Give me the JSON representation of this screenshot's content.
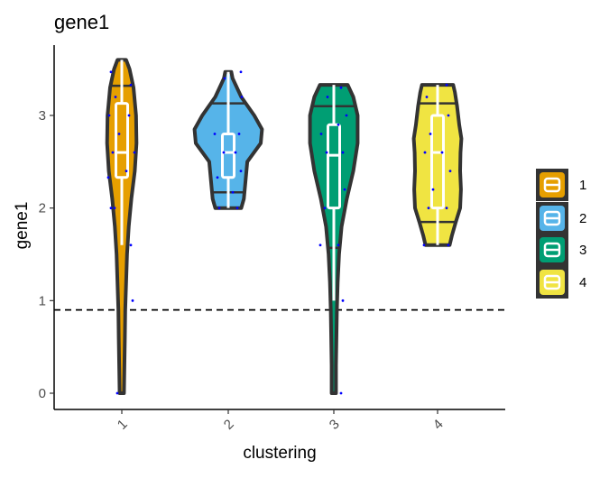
{
  "chart_data": {
    "type": "violin",
    "title": "gene1",
    "xlabel": "clustering",
    "ylabel": "gene1",
    "categories": [
      "1",
      "2",
      "3",
      "4"
    ],
    "ylim": [
      -0.18,
      3.77
    ],
    "yticks": [
      0,
      1,
      2,
      3
    ],
    "ytick_labels": [
      "0",
      "1",
      "2",
      "3"
    ],
    "reference_line": {
      "y": 0.9,
      "style": "dashed",
      "color": "#000000"
    },
    "legend": {
      "placement": "right",
      "items": [
        "1",
        "2",
        "3",
        "4"
      ]
    },
    "colors": [
      "#E69F00",
      "#56B4E9",
      "#009E73",
      "#F0E442"
    ],
    "point_color": "#0000FF",
    "groups": [
      {
        "name": "1",
        "violin": [
          [
            0,
            0.05
          ],
          [
            0.3,
            0.06
          ],
          [
            0.6,
            0.07
          ],
          [
            0.9,
            0.08
          ],
          [
            1.2,
            0.1
          ],
          [
            1.5,
            0.12
          ],
          [
            1.8,
            0.16
          ],
          [
            2.1,
            0.22
          ],
          [
            2.4,
            0.3
          ],
          [
            2.7,
            0.34
          ],
          [
            3.0,
            0.33
          ],
          [
            3.3,
            0.27
          ],
          [
            3.5,
            0.18
          ],
          [
            3.6,
            0.1
          ]
        ],
        "quantile_lines": [
          3.32
        ],
        "box": {
          "lower_whisker": 1.6,
          "q1": 2.33,
          "median": 2.6,
          "q3": 3.13,
          "upper_whisker": 3.6
        },
        "points": [
          [
            -0.05,
            0.0
          ],
          [
            0.12,
            1.0
          ],
          [
            -0.12,
            2.0
          ],
          [
            -0.08,
            2.0
          ],
          [
            0.1,
            1.6
          ],
          [
            -0.15,
            2.33
          ],
          [
            0.05,
            2.4
          ],
          [
            -0.1,
            2.6
          ],
          [
            0.14,
            2.6
          ],
          [
            -0.03,
            2.8
          ],
          [
            0.08,
            3.0
          ],
          [
            -0.14,
            3.0
          ],
          [
            -0.07,
            3.2
          ],
          [
            0.1,
            3.33
          ],
          [
            -0.12,
            3.47
          ]
        ]
      },
      {
        "name": "2",
        "violin": [
          [
            2.0,
            0.3
          ],
          [
            2.1,
            0.36
          ],
          [
            2.3,
            0.4
          ],
          [
            2.5,
            0.44
          ],
          [
            2.7,
            0.75
          ],
          [
            2.85,
            0.78
          ],
          [
            3.0,
            0.6
          ],
          [
            3.2,
            0.3
          ],
          [
            3.4,
            0.1
          ],
          [
            3.47,
            0.07
          ]
        ],
        "quantile_lines": [
          2.17,
          3.13
        ],
        "box": {
          "lower_whisker": 2.0,
          "q1": 2.33,
          "median": 2.6,
          "q3": 2.8,
          "upper_whisker": 3.47
        },
        "points": [
          [
            -0.1,
            2.0
          ],
          [
            0.1,
            2.0
          ],
          [
            0.05,
            2.17
          ],
          [
            -0.12,
            2.33
          ],
          [
            0.14,
            2.4
          ],
          [
            -0.05,
            2.6
          ],
          [
            0.08,
            2.6
          ],
          [
            -0.15,
            2.8
          ],
          [
            0.12,
            2.8
          ],
          [
            0.15,
            3.2
          ],
          [
            -0.04,
            3.4
          ],
          [
            0.14,
            3.47
          ]
        ]
      },
      {
        "name": "3",
        "violin": [
          [
            0,
            0.05
          ],
          [
            0.3,
            0.05
          ],
          [
            0.6,
            0.06
          ],
          [
            0.9,
            0.07
          ],
          [
            1.2,
            0.09
          ],
          [
            1.5,
            0.12
          ],
          [
            1.8,
            0.18
          ],
          [
            2.1,
            0.3
          ],
          [
            2.4,
            0.45
          ],
          [
            2.7,
            0.55
          ],
          [
            3.0,
            0.55
          ],
          [
            3.2,
            0.45
          ],
          [
            3.33,
            0.32
          ]
        ],
        "quantile_lines": [
          1.57,
          3.1
        ],
        "box": {
          "lower_whisker": 1.0,
          "q1": 2.0,
          "median": 2.57,
          "q3": 2.9,
          "upper_whisker": 3.33
        },
        "points": [
          [
            0.08,
            0.0
          ],
          [
            0.1,
            1.0
          ],
          [
            -0.15,
            1.6
          ],
          [
            0.05,
            1.6
          ],
          [
            -0.1,
            2.0
          ],
          [
            0.12,
            2.2
          ],
          [
            -0.08,
            2.6
          ],
          [
            0.1,
            2.6
          ],
          [
            -0.14,
            2.8
          ],
          [
            0.05,
            2.9
          ],
          [
            0.14,
            3.0
          ],
          [
            -0.07,
            3.2
          ],
          [
            0.08,
            3.3
          ]
        ]
      },
      {
        "name": "4",
        "violin": [
          [
            1.6,
            0.28
          ],
          [
            1.7,
            0.33
          ],
          [
            1.85,
            0.42
          ],
          [
            2.0,
            0.52
          ],
          [
            2.2,
            0.54
          ],
          [
            2.4,
            0.52
          ],
          [
            2.6,
            0.53
          ],
          [
            2.75,
            0.55
          ],
          [
            2.9,
            0.5
          ],
          [
            3.1,
            0.45
          ],
          [
            3.25,
            0.4
          ],
          [
            3.33,
            0.36
          ]
        ],
        "quantile_lines": [
          1.85,
          3.13
        ],
        "box": {
          "lower_whisker": 1.6,
          "q1": 2.0,
          "median": 2.6,
          "q3": 3.0,
          "upper_whisker": 3.33
        },
        "points": [
          [
            -0.15,
            1.6
          ],
          [
            0.12,
            1.6
          ],
          [
            -0.1,
            2.0
          ],
          [
            0.1,
            2.0
          ],
          [
            -0.05,
            2.2
          ],
          [
            0.14,
            2.4
          ],
          [
            -0.14,
            2.6
          ],
          [
            0.05,
            2.6
          ],
          [
            -0.08,
            2.8
          ],
          [
            0.12,
            3.0
          ],
          [
            -0.12,
            3.2
          ],
          [
            0.1,
            3.33
          ]
        ]
      }
    ]
  }
}
